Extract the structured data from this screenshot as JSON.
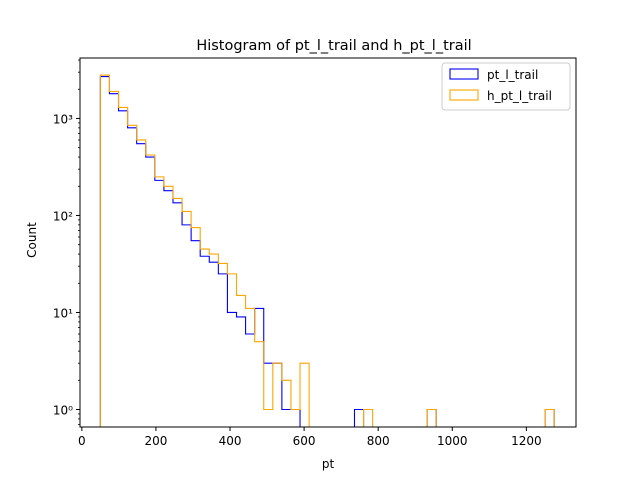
{
  "chart_data": {
    "type": "histogram",
    "title": "Histogram of pt_l_trail and h_pt_l_trail",
    "xlabel": "pt",
    "ylabel": "Count",
    "xlim": [
      -5,
      1334
    ],
    "ylim": [
      0.66,
      4200
    ],
    "yscale": "log",
    "x_ticks": [
      0,
      200,
      400,
      600,
      800,
      1000,
      1200
    ],
    "y_ticks": [
      {
        "value": 1,
        "label": "10⁰"
      },
      {
        "value": 10,
        "label": "10¹"
      },
      {
        "value": 100,
        "label": "10²"
      },
      {
        "value": 1000,
        "label": "10³"
      }
    ],
    "legend_position": "upper right",
    "grid": false,
    "series": [
      {
        "name": "pt_l_trail",
        "color": "#0000ff",
        "bin_start": 50,
        "bin_width": 24.5,
        "counts": [
          2700,
          1800,
          1200,
          800,
          550,
          400,
          230,
          180,
          135,
          80,
          55,
          38,
          33,
          25,
          10,
          9,
          6,
          11,
          3,
          3,
          1,
          1,
          0,
          0,
          0,
          0,
          0,
          0,
          1,
          0,
          0,
          0,
          0,
          0,
          0,
          0,
          1,
          0,
          0,
          0,
          0,
          0,
          0,
          0,
          0,
          0,
          0,
          0,
          0,
          1
        ]
      },
      {
        "name": "h_pt_l_trail",
        "color": "#ffa500",
        "bin_start": 50,
        "bin_width": 24.5,
        "counts": [
          2800,
          1900,
          1300,
          850,
          600,
          420,
          250,
          200,
          150,
          110,
          75,
          45,
          40,
          32,
          25,
          15,
          11,
          5,
          1,
          3,
          2,
          1,
          3,
          0,
          0,
          0,
          0,
          0,
          0,
          1,
          0,
          0,
          0,
          0,
          0,
          0,
          1,
          0,
          0,
          0,
          0,
          0,
          0,
          0,
          0,
          0,
          0,
          0,
          0,
          1
        ]
      }
    ]
  }
}
